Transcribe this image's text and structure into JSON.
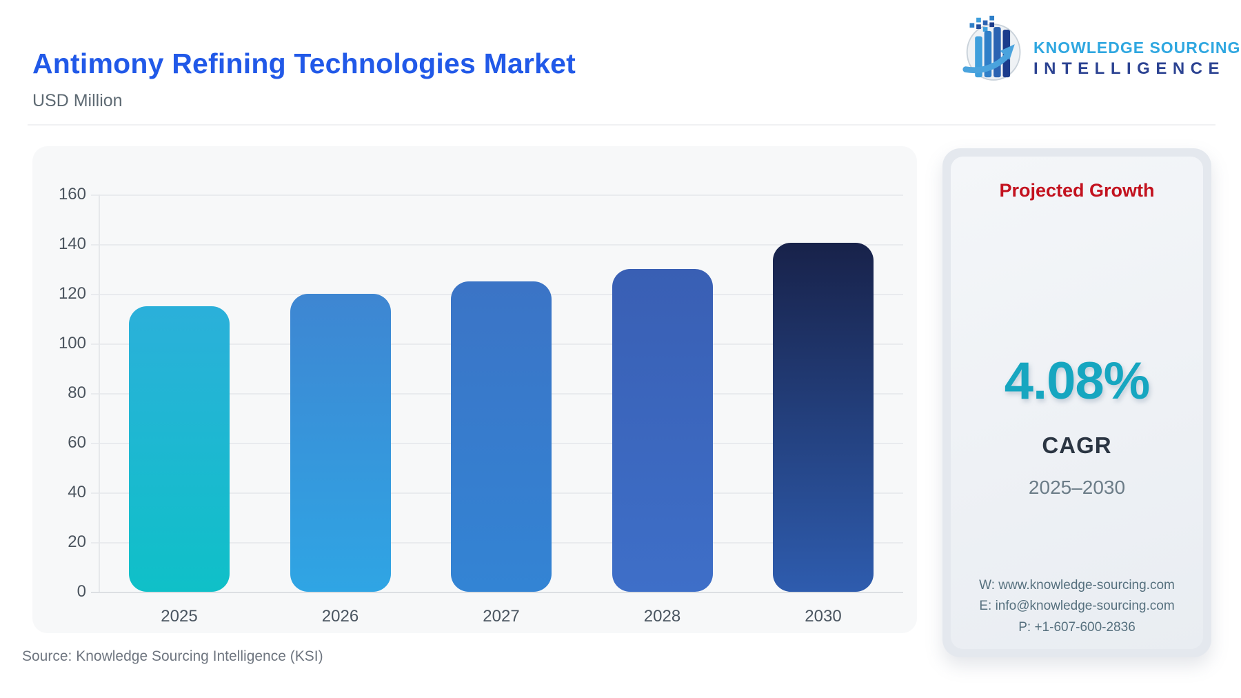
{
  "header": {
    "title": "Antimony Refining Technologies Market",
    "subtitle": "USD Million"
  },
  "logo": {
    "icon": "bar-chart-globe-arrow",
    "line1": "KNOWLEDGE SOURCING",
    "line2": "INTELLIGENCE"
  },
  "chart_data": {
    "type": "bar",
    "title": "Antimony Refining Technologies Market",
    "units": "USD Million",
    "categories": [
      "2025",
      "2026",
      "2027",
      "2028",
      "2030"
    ],
    "values": [
      115,
      120,
      125,
      130,
      140.5
    ],
    "ylim": [
      0,
      160
    ],
    "yticks": [
      0,
      20,
      40,
      60,
      80,
      100,
      120,
      140,
      160
    ],
    "grid": true,
    "legend": "none",
    "bar_colors": [
      {
        "top": "#2bb0da",
        "bottom": "#0fc0c8"
      },
      {
        "top": "#3e86d2",
        "bottom": "#2fa5e4"
      },
      {
        "top": "#3b74c6",
        "bottom": "#3384d4"
      },
      {
        "top": "#395fb4",
        "bottom": "#3e6fc8"
      },
      {
        "top": "#18224a",
        "bottom": "#2e5cae"
      }
    ]
  },
  "panel": {
    "heading": "Projected Growth",
    "value": "4.08%",
    "value_label": "CAGR",
    "period": "2025–2030",
    "contact": {
      "website": "W: www.knowledge-sourcing.com",
      "email": "E: info@knowledge-sourcing.com",
      "phone": "P: +1-607-600-2836"
    },
    "heading_color": "#c3121f",
    "value_color": "#16a6c0"
  },
  "footer": {
    "source": "Source: Knowledge Sourcing Intelligence (KSI)"
  },
  "colors": {
    "title": "#2159e8",
    "logo_line1": "#2fa7e0",
    "logo_line2": "#2c4392"
  }
}
